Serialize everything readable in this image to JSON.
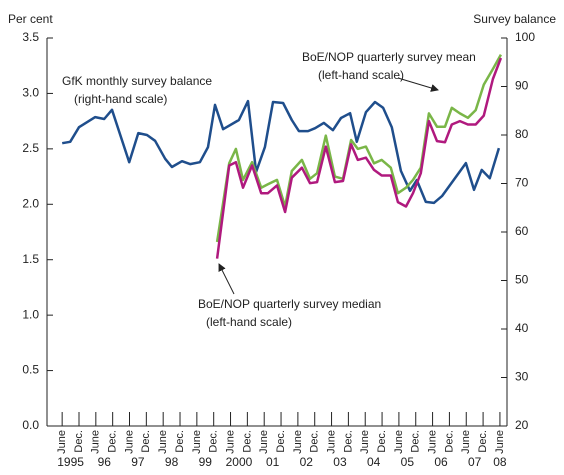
{
  "chart_data": {
    "type": "line",
    "ylabel": "Per cent",
    "y2label": "Survey balance",
    "annotations": [
      {
        "lines": [
          "GfK monthly survey balance",
          "(right-hand scale)"
        ]
      },
      {
        "lines": [
          "BoE/NOP quarterly survey mean",
          "(left-hand scale)"
        ]
      },
      {
        "lines": [
          "BoE/NOP quarterly survey median",
          "(left-hand scale)"
        ]
      }
    ],
    "xlim": [
      1995.05,
      2008.71
    ],
    "xticks": [
      {
        "value": 1995.5,
        "label": "June"
      },
      {
        "value": 1996.0,
        "label": "Dec."
      },
      {
        "value": 1996.5,
        "label": "June"
      },
      {
        "value": 1997.0,
        "label": "Dec."
      },
      {
        "value": 1997.5,
        "label": "June"
      },
      {
        "value": 1998.0,
        "label": "Dec."
      },
      {
        "value": 1998.5,
        "label": "June"
      },
      {
        "value": 1999.0,
        "label": "Dec."
      },
      {
        "value": 1999.5,
        "label": "June"
      },
      {
        "value": 2000.0,
        "label": "Dec."
      },
      {
        "value": 2000.5,
        "label": "June"
      },
      {
        "value": 2001.0,
        "label": "Dec."
      },
      {
        "value": 2001.5,
        "label": "June"
      },
      {
        "value": 2002.0,
        "label": "Dec."
      },
      {
        "value": 2002.5,
        "label": "June"
      },
      {
        "value": 2003.0,
        "label": "Dec."
      },
      {
        "value": 2003.5,
        "label": "June"
      },
      {
        "value": 2004.0,
        "label": "Dec."
      },
      {
        "value": 2004.5,
        "label": "June"
      },
      {
        "value": 2005.0,
        "label": "Dec."
      },
      {
        "value": 2005.5,
        "label": "June"
      },
      {
        "value": 2006.0,
        "label": "Dec."
      },
      {
        "value": 2006.5,
        "label": "June"
      },
      {
        "value": 2007.0,
        "label": "Dec."
      },
      {
        "value": 2007.5,
        "label": "June"
      },
      {
        "value": 2008.0,
        "label": "Dec."
      },
      {
        "value": 2008.5,
        "label": "June"
      }
    ],
    "year_labels": [
      "1995",
      "96",
      "97",
      "98",
      "99",
      "2000",
      "01",
      "02",
      "03",
      "04",
      "05",
      "06",
      "07",
      "08"
    ],
    "ylim": [
      0,
      3.5
    ],
    "yticks": [
      {
        "value": 0,
        "label": "0.0"
      },
      0.5,
      {
        "value": 1,
        "label": "1.0"
      },
      1.5,
      {
        "value": 2,
        "label": "2.0"
      },
      2.5,
      {
        "value": 3,
        "label": "3.0"
      },
      3.5
    ],
    "y2lim": [
      20,
      100
    ],
    "y2ticks": [
      20,
      30,
      40,
      50,
      60,
      70,
      80,
      90,
      100
    ],
    "series": [
      {
        "name": "GfK monthly survey balance",
        "color": "#1f4e8c",
        "axis": "y2",
        "x": [
          1995.5,
          1995.74,
          1996.0,
          1996.48,
          1996.75,
          1996.98,
          1997.49,
          1997.76,
          1998.02,
          1998.26,
          1998.56,
          1998.76,
          1999.06,
          1999.3,
          1999.59,
          1999.83,
          2000.04,
          2000.28,
          2000.75,
          2001.02,
          2001.26,
          2001.52,
          2001.76,
          2002.06,
          2002.32,
          2002.53,
          2002.8,
          2003.01,
          2003.27,
          2003.54,
          2003.78,
          2004.05,
          2004.25,
          2004.52,
          2004.79,
          2005.03,
          2005.29,
          2005.56,
          2005.83,
          2006.03,
          2006.3,
          2006.54,
          2006.78,
          2007.49,
          2007.73,
          2007.96,
          2008.2,
          2008.47
        ],
        "values": [
          78.3,
          78.6,
          81.6,
          83.7,
          83.3,
          85.2,
          74.4,
          80.4,
          80.0,
          78.8,
          75.1,
          73.4,
          74.6,
          74.0,
          74.4,
          77.5,
          86.2,
          81.2,
          83.1,
          87.0,
          72.4,
          77.5,
          86.8,
          86.6,
          83.1,
          80.8,
          80.8,
          81.4,
          82.5,
          81.0,
          83.5,
          84.5,
          78.6,
          84.7,
          86.8,
          85.6,
          81.6,
          72.6,
          68.5,
          70.7,
          66.2,
          66.0,
          67.4,
          74.2,
          68.7,
          72.8,
          71.1,
          77.3
        ]
      },
      {
        "name": "BoE/NOP quarterly survey mean",
        "color": "#7ab648",
        "axis": "y",
        "x": [
          2000.1,
          2000.46,
          2000.66,
          2000.87,
          2001.14,
          2001.41,
          2001.61,
          2001.88,
          2002.12,
          2002.32,
          2002.62,
          2002.86,
          2003.07,
          2003.33,
          2003.6,
          2003.84,
          2004.08,
          2004.28,
          2004.52,
          2004.76,
          2004.99,
          2005.26,
          2005.47,
          2005.71,
          2005.92,
          2006.15,
          2006.39,
          2006.63,
          2006.87,
          2007.07,
          2007.31,
          2007.55,
          2007.78,
          2008.02,
          2008.29,
          2008.53
        ],
        "values": [
          1.66,
          2.37,
          2.5,
          2.22,
          2.38,
          2.15,
          2.18,
          2.22,
          1.98,
          2.3,
          2.4,
          2.23,
          2.28,
          2.62,
          2.25,
          2.23,
          2.58,
          2.5,
          2.52,
          2.37,
          2.4,
          2.33,
          2.1,
          2.15,
          2.22,
          2.33,
          2.82,
          2.7,
          2.7,
          2.87,
          2.82,
          2.78,
          2.85,
          3.08,
          3.22,
          3.35
        ]
      },
      {
        "name": "BoE/NOP quarterly survey median",
        "color": "#b0197e",
        "axis": "y",
        "x": [
          2000.1,
          2000.46,
          2000.66,
          2000.87,
          2001.14,
          2001.41,
          2001.61,
          2001.88,
          2002.12,
          2002.32,
          2002.62,
          2002.86,
          2003.07,
          2003.33,
          2003.6,
          2003.84,
          2004.08,
          2004.28,
          2004.52,
          2004.76,
          2004.99,
          2005.26,
          2005.47,
          2005.71,
          2005.92,
          2006.15,
          2006.39,
          2006.63,
          2006.87,
          2007.07,
          2007.31,
          2007.55,
          2007.78,
          2008.02,
          2008.29,
          2008.53
        ],
        "values": [
          1.51,
          2.35,
          2.38,
          2.15,
          2.35,
          2.1,
          2.1,
          2.17,
          1.93,
          2.24,
          2.33,
          2.19,
          2.2,
          2.52,
          2.2,
          2.21,
          2.54,
          2.4,
          2.42,
          2.31,
          2.26,
          2.26,
          2.02,
          1.98,
          2.1,
          2.28,
          2.75,
          2.57,
          2.56,
          2.72,
          2.75,
          2.72,
          2.72,
          2.8,
          3.13,
          3.32
        ]
      }
    ]
  }
}
